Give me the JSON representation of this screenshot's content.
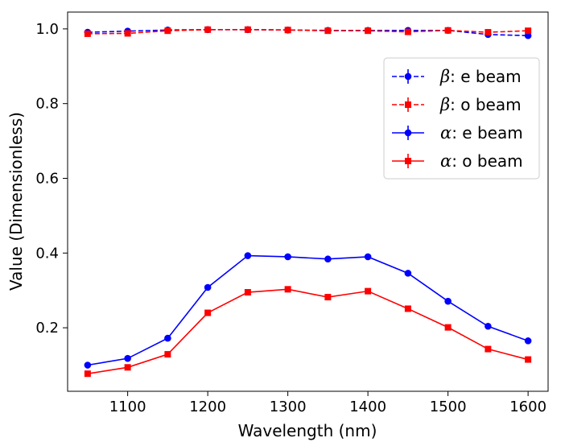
{
  "chart_data": {
    "type": "line",
    "title": "",
    "xlabel": "Wavelength (nm)",
    "ylabel": "Value (Dimensionless)",
    "xlim": [
      1025,
      1625
    ],
    "ylim": [
      0.03,
      1.045
    ],
    "xticks": [
      1100,
      1200,
      1300,
      1400,
      1500,
      1600
    ],
    "xtick_labels": [
      "1100",
      "1200",
      "1300",
      "1400",
      "1500",
      "1600"
    ],
    "yticks": [
      0.2,
      0.4,
      0.6,
      0.8,
      1.0
    ],
    "ytick_labels": [
      "0.2",
      "0.4",
      "0.6",
      "0.8",
      "1.0"
    ],
    "legend_position": "upper-right",
    "x": [
      1050,
      1100,
      1150,
      1200,
      1250,
      1300,
      1350,
      1400,
      1450,
      1500,
      1550,
      1600
    ],
    "series": [
      {
        "name": "β: e beam",
        "symbol": "β",
        "suffix": ": e beam",
        "color": "#0000ff",
        "linestyle": "dashed",
        "marker": "circle",
        "values": [
          0.991,
          0.994,
          0.997,
          0.998,
          0.998,
          0.997,
          0.996,
          0.996,
          0.996,
          0.996,
          0.985,
          0.982
        ]
      },
      {
        "name": "β: o beam",
        "symbol": "β",
        "suffix": ": o beam",
        "color": "#ff0000",
        "linestyle": "dashed",
        "marker": "square",
        "values": [
          0.987,
          0.988,
          0.995,
          0.998,
          0.998,
          0.997,
          0.995,
          0.995,
          0.992,
          0.996,
          0.991,
          0.995
        ]
      },
      {
        "name": "α: e beam",
        "symbol": "α",
        "suffix": ": e beam",
        "color": "#0000ff",
        "linestyle": "solid",
        "marker": "circle",
        "values": [
          0.1,
          0.118,
          0.172,
          0.308,
          0.393,
          0.39,
          0.384,
          0.39,
          0.346,
          0.271,
          0.204,
          0.165
        ]
      },
      {
        "name": "α: o beam",
        "symbol": "α",
        "suffix": ": o beam",
        "color": "#ff0000",
        "linestyle": "solid",
        "marker": "square",
        "values": [
          0.077,
          0.094,
          0.129,
          0.24,
          0.295,
          0.303,
          0.282,
          0.298,
          0.251,
          0.201,
          0.143,
          0.115
        ]
      }
    ]
  }
}
